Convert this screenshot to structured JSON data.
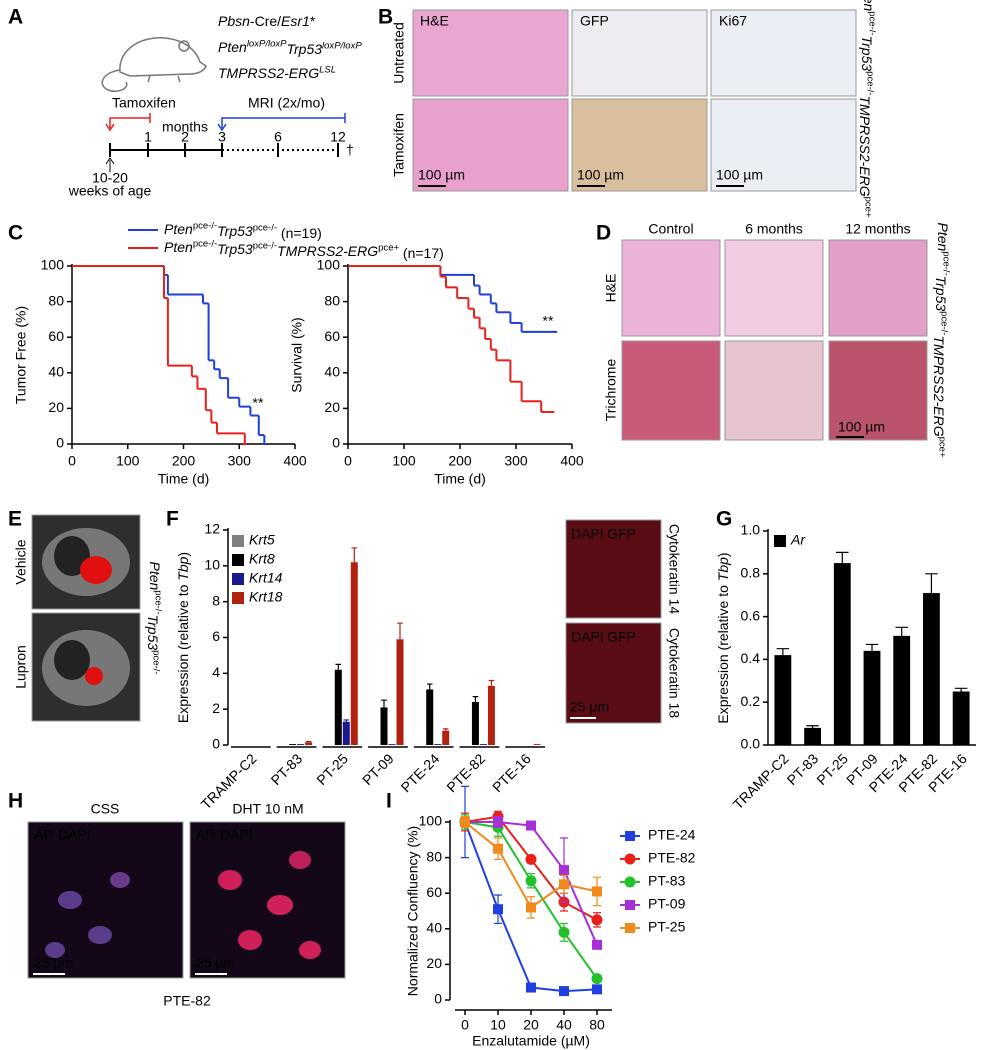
{
  "panel_labels": [
    "A",
    "B",
    "C",
    "D",
    "E",
    "F",
    "G",
    "H",
    "I"
  ],
  "panel_a": {
    "genotype": [
      [
        "Pbsn",
        "-Cre/",
        "Esr1",
        "*"
      ],
      [
        "Pten",
        "loxP/loxP",
        "Trp53",
        "loxP/loxP"
      ],
      [
        "TMPRSS2-ERG",
        "LSL"
      ]
    ],
    "tamoxifen": "Tamoxifen",
    "mri": "MRI (2x/mo)",
    "months": "months",
    "timeline_ticks": [
      "1",
      "2",
      "3",
      "6",
      "12"
    ],
    "dagger": "†",
    "age": [
      "10-20",
      "weeks of age"
    ]
  },
  "panel_b": {
    "columns": [
      "H&E",
      "GFP",
      "Ki67"
    ],
    "rows": [
      "Untreated",
      "Tamoxifen"
    ],
    "scale_bar": "100 µm",
    "genotype": [
      "Pten",
      "pce-/-",
      "Trp53",
      "pce-/-",
      "TMPRSS2-ERG",
      "pce+"
    ]
  },
  "panel_d": {
    "columns": [
      "Control",
      "6 months",
      "12 months"
    ],
    "rows": [
      "H&E",
      "Trichrome"
    ],
    "scale_bar": "100 µm"
  },
  "panel_e": {
    "rows": [
      "Vehicle",
      "Lupron"
    ],
    "genotype": [
      "Pten",
      "pce-/-",
      "Trp53",
      "pce-/-"
    ]
  },
  "panel_f_images": {
    "stains": [
      "DAPI",
      "GFP"
    ],
    "markers": [
      "Cytokeratin 14",
      "Cytokeratin 18"
    ],
    "scale_bar": "25 µm"
  },
  "panel_h": {
    "conditions": [
      "CSS",
      "DHT 10 nM"
    ],
    "stains": [
      "AR",
      "DAPI"
    ],
    "scale_bar": "25 µm",
    "cell_line": "PTE-82"
  },
  "chart_data": [
    {
      "type": "step",
      "ylabel": "Tumor  Free (%)",
      "xlabel": "Time (d)",
      "xlim": [
        0,
        400
      ],
      "xticks": [
        0,
        100,
        200,
        300,
        400
      ],
      "ylim": [
        0,
        100
      ],
      "yticks": [
        0,
        20,
        40,
        60,
        80,
        100
      ],
      "annotation": "**",
      "series": [
        {
          "name": [
            "Pten",
            "pce-/-",
            "Trp53",
            "pce-/-",
            " (n=19)"
          ],
          "color": "#1f3fd6",
          "x": [
            0,
            165,
            172,
            235,
            245,
            255,
            265,
            280,
            300,
            320,
            335,
            345
          ],
          "values": [
            100,
            95,
            84,
            79,
            47,
            42,
            37,
            26,
            21,
            16,
            5,
            0
          ]
        },
        {
          "name": [
            "Pten",
            "pce-/-",
            "Trp53",
            "pce-/-",
            "TMPRSS2-ERG",
            "pce+",
            " (n=17)"
          ],
          "color": "#e8201c",
          "x": [
            0,
            165,
            172,
            215,
            225,
            240,
            250,
            260,
            310
          ],
          "values": [
            100,
            82,
            44,
            38,
            31,
            19,
            12,
            6,
            0
          ]
        }
      ]
    },
    {
      "type": "step",
      "ylabel": "Survival (%)",
      "xlabel": "Time (d)",
      "xlim": [
        0,
        400
      ],
      "xticks": [
        0,
        100,
        200,
        300,
        400
      ],
      "ylim": [
        0,
        100
      ],
      "yticks": [
        0,
        20,
        40,
        60,
        80,
        100
      ],
      "annotation": "**",
      "series": [
        {
          "color": "#1f3fd6",
          "x": [
            0,
            165,
            225,
            235,
            255,
            265,
            290,
            310,
            370
          ],
          "values": [
            100,
            95,
            89,
            84,
            79,
            74,
            68,
            63,
            63
          ]
        },
        {
          "color": "#e8201c",
          "x": [
            0,
            165,
            175,
            195,
            215,
            225,
            235,
            245,
            255,
            265,
            290,
            310,
            345,
            365
          ],
          "values": [
            100,
            94,
            88,
            82,
            76,
            71,
            65,
            59,
            53,
            47,
            35,
            24,
            18,
            18
          ]
        }
      ]
    },
    {
      "type": "bar",
      "ylabel": [
        "Expression (relative to ",
        "Tbp",
        ")"
      ],
      "categories": [
        "TRAMP-C2",
        "PT-83",
        "PT-25",
        "PT-09",
        "PTE-24",
        "PTE-82",
        "PTE-16"
      ],
      "ylim": [
        0,
        12
      ],
      "yticks": [
        0,
        2,
        4,
        6,
        8,
        10,
        12
      ],
      "series": [
        {
          "name": "Krt5",
          "color": "#808080",
          "values": [
            0,
            0,
            0,
            0,
            0,
            0,
            0
          ],
          "errors": [
            0,
            0,
            0,
            0,
            0,
            0,
            0
          ]
        },
        {
          "name": "Krt8",
          "color": "#000000",
          "values": [
            0,
            0.05,
            4.2,
            2.1,
            3.1,
            2.4,
            0
          ],
          "errors": [
            0,
            0,
            0.3,
            0.4,
            0.3,
            0.3,
            0
          ]
        },
        {
          "name": "Krt14",
          "color": "#1a1a8c",
          "values": [
            0,
            0.05,
            1.3,
            0.05,
            0.05,
            0.05,
            0
          ],
          "errors": [
            0,
            0,
            0.1,
            0,
            0,
            0,
            0
          ]
        },
        {
          "name": "Krt18",
          "color": "#b22210",
          "values": [
            0,
            0.15,
            10.2,
            5.9,
            0.8,
            3.3,
            0.05
          ],
          "errors": [
            0,
            0.05,
            0.8,
            0.9,
            0.1,
            0.3,
            0
          ]
        }
      ]
    },
    {
      "type": "bar",
      "ylabel": [
        "Expression (relative to ",
        "Tbp",
        ")"
      ],
      "categories": [
        "TRAMP-C2",
        "PT-83",
        "PT-25",
        "PT-09",
        "PTE-24",
        "PTE-82",
        "PTE-16"
      ],
      "ylim": [
        0,
        1
      ],
      "yticks": [
        {
          "value": 0,
          "label": "0.0"
        },
        0.2,
        0.4,
        0.6,
        0.8,
        {
          "value": 1,
          "label": "1.0"
        }
      ],
      "series": [
        {
          "name": "Ar",
          "color": "#000000",
          "values": [
            0.42,
            0.08,
            0.85,
            0.44,
            0.51,
            0.71,
            0.25
          ],
          "errors": [
            0.03,
            0.01,
            0.05,
            0.03,
            0.04,
            0.09,
            0.015
          ]
        }
      ]
    },
    {
      "type": "line",
      "ylabel": "Normalized Confluency (%)",
      "xlabel": "Enzalutamide (µM)",
      "categories": [
        "0",
        "10",
        "20",
        "40",
        "80"
      ],
      "ylim": [
        0,
        100
      ],
      "yticks": [
        0,
        20,
        40,
        60,
        80,
        100
      ],
      "series": [
        {
          "name": "PTE-24",
          "color": "#1f3fe0",
          "marker": "square",
          "values": [
            100,
            51,
            7,
            5,
            6
          ],
          "errors": [
            20,
            8,
            1,
            1,
            1
          ]
        },
        {
          "name": "PTE-82",
          "color": "#e8201c",
          "marker": "circle",
          "values": [
            100,
            103,
            79,
            55,
            45
          ],
          "errors": [
            5,
            3,
            2,
            5,
            4
          ]
        },
        {
          "name": "PT-83",
          "color": "#22c02a",
          "marker": "circle",
          "values": [
            100,
            97,
            67,
            38,
            12
          ],
          "errors": [
            4,
            5,
            4,
            5,
            2
          ]
        },
        {
          "name": "PT-09",
          "color": "#a62fd8",
          "marker": "square",
          "values": [
            100,
            100,
            98,
            73,
            31
          ],
          "errors": [
            3,
            3,
            2,
            18,
            2
          ]
        },
        {
          "name": "PT-25",
          "color": "#f08a1c",
          "marker": "square",
          "values": [
            100,
            85,
            52,
            65,
            61
          ],
          "errors": [
            3,
            6,
            6,
            5,
            8
          ]
        }
      ]
    }
  ]
}
